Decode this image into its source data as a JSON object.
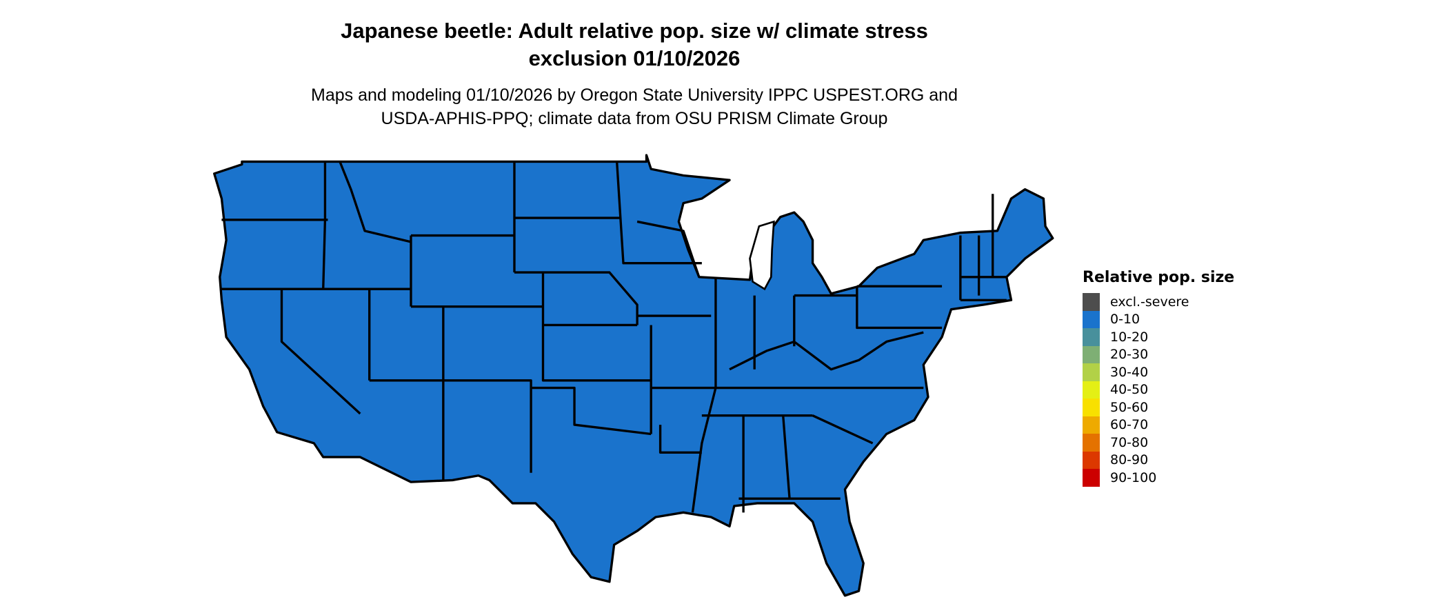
{
  "title": {
    "line1": "Japanese beetle: Adult relative pop. size w/ climate stress",
    "line2": "exclusion 01/10/2026"
  },
  "subtitle": {
    "line1": "Maps and modeling 01/10/2026 by Oregon State University IPPC USPEST.ORG and",
    "line2": "USDA-APHIS-PPQ; climate data from OSU PRISM Climate Group"
  },
  "map": {
    "region": "Contiguous United States",
    "fill_category": "0-10",
    "fill_color": "#1a73cc",
    "border_color": "#000000"
  },
  "legend": {
    "title": "Relative pop. size",
    "items": [
      {
        "label": "excl.-severe",
        "color": "#4d4d4d"
      },
      {
        "label": "0-10",
        "color": "#1a73cc"
      },
      {
        "label": "10-20",
        "color": "#48909c"
      },
      {
        "label": "20-30",
        "color": "#7eaf74"
      },
      {
        "label": "30-40",
        "color": "#b2d147"
      },
      {
        "label": "40-50",
        "color": "#e4ef15"
      },
      {
        "label": "50-60",
        "color": "#f8e000"
      },
      {
        "label": "60-70",
        "color": "#eeaa00"
      },
      {
        "label": "70-80",
        "color": "#e47200"
      },
      {
        "label": "80-90",
        "color": "#dc3800"
      },
      {
        "label": "90-100",
        "color": "#cc0000"
      }
    ]
  }
}
